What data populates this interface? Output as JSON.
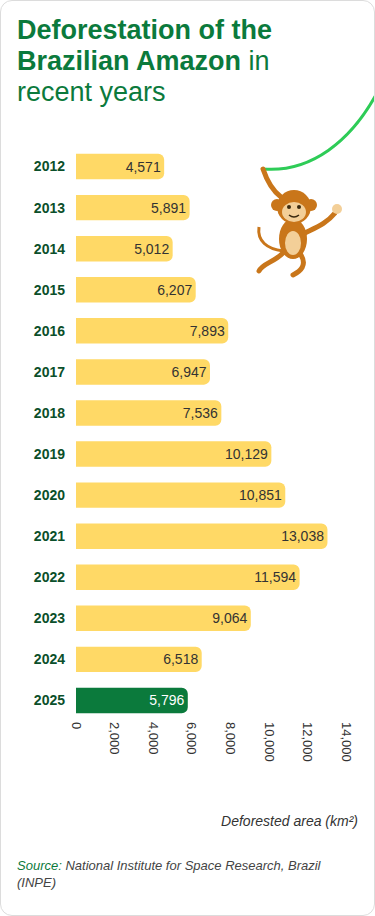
{
  "chart_data": {
    "type": "bar",
    "title": "Deforestation of the Brazilian Amazon in recent years",
    "x_label": "Deforested area (km²)",
    "source": "Source: National Institute for Space Research, Brazil (INPE)",
    "orientation": "horizontal",
    "categories": [
      "2012",
      "2013",
      "2014",
      "2015",
      "2016",
      "2017",
      "2018",
      "2019",
      "2020",
      "2021",
      "2022",
      "2023",
      "2024",
      "2025"
    ],
    "values": [
      4571,
      5891,
      5012,
      6207,
      7893,
      6947,
      7536,
      10129,
      10851,
      13038,
      11594,
      9064,
      6518,
      5796
    ],
    "value_labels": [
      "4,571",
      "5,891",
      "5,012",
      "6,207",
      "7,893",
      "6,947",
      "7,536",
      "10,129",
      "10,851",
      "13,038",
      "11,594",
      "9,064",
      "6,518",
      "5,796"
    ],
    "colors": [
      "#ffd966",
      "#ffd966",
      "#ffd966",
      "#ffd966",
      "#ffd966",
      "#ffd966",
      "#ffd966",
      "#ffd966",
      "#ffd966",
      "#ffd966",
      "#ffd966",
      "#ffd966",
      "#ffd966",
      "#0b7a3c"
    ],
    "data_labels": true,
    "grid": false,
    "xlim": [
      0,
      14000
    ],
    "xticks": [
      0,
      {
        "value": 2000,
        "label": "2,000"
      },
      {
        "value": 4000,
        "label": "4,000"
      },
      {
        "value": 6000,
        "label": "6,000"
      },
      {
        "value": 8000,
        "label": "8,000"
      },
      {
        "value": 10000,
        "label": "10,000"
      },
      {
        "value": 12000,
        "label": "12,000"
      },
      {
        "value": 14000,
        "label": "14,000"
      }
    ]
  }
}
